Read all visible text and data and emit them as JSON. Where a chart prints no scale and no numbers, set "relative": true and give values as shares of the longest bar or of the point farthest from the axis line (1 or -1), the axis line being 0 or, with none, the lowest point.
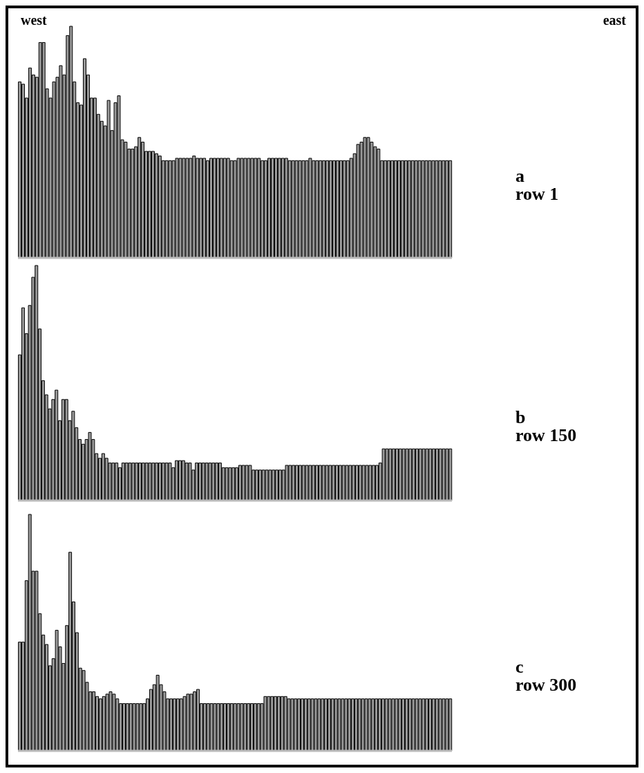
{
  "chart_data": [
    {
      "type": "bar",
      "relative": true,
      "annotations": [
        "west",
        "east",
        "a",
        "row 1"
      ],
      "color": "#9a9a9a",
      "categories": [
        null,
        null,
        null,
        null,
        null,
        null,
        null,
        null,
        null,
        null,
        null,
        null,
        null,
        null,
        null,
        null,
        null,
        null,
        null,
        null,
        null,
        null,
        null,
        null,
        null,
        null,
        null,
        null,
        null,
        null,
        null,
        null,
        null,
        null,
        null,
        null,
        null,
        null,
        null,
        null,
        null,
        null,
        null,
        null,
        null,
        null,
        null,
        null,
        null,
        null,
        null,
        null,
        null,
        null,
        null,
        null,
        null,
        null,
        null,
        null,
        null,
        null,
        null,
        null,
        null,
        null,
        null,
        null,
        null,
        null,
        null,
        null,
        null,
        null,
        null,
        null,
        null,
        null,
        null,
        null,
        null,
        null,
        null,
        null,
        null,
        null,
        null,
        null,
        null,
        null,
        null,
        null,
        null,
        null,
        null,
        null,
        null,
        null,
        null,
        null,
        null,
        null,
        null,
        null,
        null,
        null,
        null,
        null,
        null,
        null,
        null,
        null,
        null,
        null,
        null,
        null,
        null,
        null,
        null,
        null,
        null,
        null,
        null,
        null,
        null,
        null,
        null
      ],
      "values": [
        0.76,
        0.75,
        0.69,
        0.82,
        0.79,
        0.78,
        0.93,
        0.93,
        0.73,
        0.69,
        0.76,
        0.78,
        0.83,
        0.79,
        0.96,
        1.0,
        0.76,
        0.67,
        0.66,
        0.86,
        0.79,
        0.69,
        0.69,
        0.62,
        0.59,
        0.57,
        0.68,
        0.55,
        0.67,
        0.7,
        0.51,
        0.5,
        0.47,
        0.47,
        0.48,
        0.52,
        0.5,
        0.46,
        0.46,
        0.46,
        0.45,
        0.44,
        0.42,
        0.42,
        0.42,
        0.42,
        0.43,
        0.43,
        0.43,
        0.43,
        0.43,
        0.44,
        0.43,
        0.43,
        0.43,
        0.42,
        0.43,
        0.43,
        0.43,
        0.43,
        0.43,
        0.43,
        0.42,
        0.42,
        0.43,
        0.43,
        0.43,
        0.43,
        0.43,
        0.43,
        0.43,
        0.42,
        0.42,
        0.43,
        0.43,
        0.43,
        0.43,
        0.43,
        0.43,
        0.42,
        0.42,
        0.42,
        0.42,
        0.42,
        0.42,
        0.43,
        0.42,
        0.42,
        0.42,
        0.42,
        0.42,
        0.42,
        0.42,
        0.42,
        0.42,
        0.42,
        0.42,
        0.43,
        0.45,
        0.49,
        0.5,
        0.52,
        0.52,
        0.5,
        0.48,
        0.47,
        0.42,
        0.42,
        0.42,
        0.42,
        0.42,
        0.42,
        0.42,
        0.42,
        0.42,
        0.42,
        0.42,
        0.42,
        0.42,
        0.42,
        0.42,
        0.42,
        0.42,
        0.42,
        0.42,
        0.42,
        0.42
      ]
    },
    {
      "type": "bar",
      "relative": true,
      "annotations": [
        "b",
        "row 150"
      ],
      "color": "#9a9a9a",
      "categories": [
        null,
        null,
        null,
        null,
        null,
        null,
        null,
        null,
        null,
        null,
        null,
        null,
        null,
        null,
        null,
        null,
        null,
        null,
        null,
        null,
        null,
        null,
        null,
        null,
        null,
        null,
        null,
        null,
        null,
        null,
        null,
        null,
        null,
        null,
        null,
        null,
        null,
        null,
        null,
        null,
        null,
        null,
        null,
        null,
        null,
        null,
        null,
        null,
        null,
        null,
        null,
        null,
        null,
        null,
        null,
        null,
        null,
        null,
        null,
        null,
        null,
        null,
        null,
        null,
        null,
        null,
        null,
        null,
        null,
        null,
        null,
        null,
        null,
        null,
        null,
        null,
        null,
        null,
        null,
        null,
        null,
        null,
        null,
        null,
        null,
        null,
        null,
        null,
        null,
        null,
        null,
        null,
        null,
        null,
        null,
        null,
        null,
        null,
        null,
        null,
        null,
        null,
        null,
        null,
        null,
        null,
        null,
        null,
        null,
        null,
        null,
        null,
        null,
        null,
        null,
        null,
        null,
        null,
        null,
        null,
        null,
        null,
        null,
        null,
        null,
        null,
        null,
        null,
        null,
        null
      ],
      "values": [
        0.62,
        0.82,
        0.71,
        0.83,
        0.95,
        1.0,
        0.73,
        0.51,
        0.45,
        0.39,
        0.43,
        0.47,
        0.34,
        0.43,
        0.43,
        0.34,
        0.38,
        0.31,
        0.26,
        0.24,
        0.26,
        0.29,
        0.26,
        0.2,
        0.18,
        0.2,
        0.18,
        0.16,
        0.16,
        0.16,
        0.14,
        0.16,
        0.16,
        0.16,
        0.16,
        0.16,
        0.16,
        0.16,
        0.16,
        0.16,
        0.16,
        0.16,
        0.16,
        0.16,
        0.16,
        0.16,
        0.14,
        0.17,
        0.17,
        0.17,
        0.16,
        0.16,
        0.13,
        0.16,
        0.16,
        0.16,
        0.16,
        0.16,
        0.16,
        0.16,
        0.16,
        0.14,
        0.14,
        0.14,
        0.14,
        0.14,
        0.15,
        0.15,
        0.15,
        0.15,
        0.13,
        0.13,
        0.13,
        0.13,
        0.13,
        0.13,
        0.13,
        0.13,
        0.13,
        0.13,
        0.15,
        0.15,
        0.15,
        0.15,
        0.15,
        0.15,
        0.15,
        0.15,
        0.15,
        0.15,
        0.15,
        0.15,
        0.15,
        0.15,
        0.15,
        0.15,
        0.15,
        0.15,
        0.15,
        0.15,
        0.15,
        0.15,
        0.15,
        0.15,
        0.15,
        0.15,
        0.15,
        0.15,
        0.16,
        0.22,
        0.22,
        0.22,
        0.22,
        0.22,
        0.22,
        0.22,
        0.22,
        0.22,
        0.22,
        0.22,
        0.22,
        0.22,
        0.22,
        0.22,
        0.22,
        0.22,
        0.22,
        0.22,
        0.22,
        0.22
      ]
    },
    {
      "type": "bar",
      "relative": true,
      "annotations": [
        "c",
        "row 300"
      ],
      "color": "#9a9a9a",
      "categories": [
        null,
        null,
        null,
        null,
        null,
        null,
        null,
        null,
        null,
        null,
        null,
        null,
        null,
        null,
        null,
        null,
        null,
        null,
        null,
        null,
        null,
        null,
        null,
        null,
        null,
        null,
        null,
        null,
        null,
        null,
        null,
        null,
        null,
        null,
        null,
        null,
        null,
        null,
        null,
        null,
        null,
        null,
        null,
        null,
        null,
        null,
        null,
        null,
        null,
        null,
        null,
        null,
        null,
        null,
        null,
        null,
        null,
        null,
        null,
        null,
        null,
        null,
        null,
        null,
        null,
        null,
        null,
        null,
        null,
        null,
        null,
        null,
        null,
        null,
        null,
        null,
        null,
        null,
        null,
        null,
        null,
        null,
        null,
        null,
        null,
        null,
        null,
        null,
        null,
        null,
        null,
        null,
        null,
        null,
        null,
        null,
        null,
        null,
        null,
        null,
        null,
        null,
        null,
        null,
        null,
        null,
        null,
        null,
        null,
        null,
        null,
        null,
        null,
        null,
        null,
        null,
        null,
        null,
        null,
        null,
        null,
        null,
        null,
        null,
        null,
        null,
        null,
        null,
        null
      ],
      "values": [
        0.46,
        0.46,
        0.72,
        1.0,
        0.76,
        0.76,
        0.58,
        0.49,
        0.45,
        0.36,
        0.39,
        0.51,
        0.44,
        0.37,
        0.53,
        0.84,
        0.63,
        0.5,
        0.35,
        0.34,
        0.29,
        0.25,
        0.25,
        0.23,
        0.22,
        0.23,
        0.24,
        0.25,
        0.24,
        0.22,
        0.2,
        0.2,
        0.2,
        0.2,
        0.2,
        0.2,
        0.2,
        0.2,
        0.22,
        0.26,
        0.28,
        0.32,
        0.28,
        0.25,
        0.22,
        0.22,
        0.22,
        0.22,
        0.22,
        0.23,
        0.24,
        0.24,
        0.25,
        0.26,
        0.2,
        0.2,
        0.2,
        0.2,
        0.2,
        0.2,
        0.2,
        0.2,
        0.2,
        0.2,
        0.2,
        0.2,
        0.2,
        0.2,
        0.2,
        0.2,
        0.2,
        0.2,
        0.2,
        0.23,
        0.23,
        0.23,
        0.23,
        0.23,
        0.23,
        0.23,
        0.22,
        0.22,
        0.22,
        0.22,
        0.22,
        0.22,
        0.22,
        0.22,
        0.22,
        0.22,
        0.22,
        0.22,
        0.22,
        0.22,
        0.22,
        0.22,
        0.22,
        0.22,
        0.22,
        0.22,
        0.22,
        0.22,
        0.22,
        0.22,
        0.22,
        0.22,
        0.22,
        0.22,
        0.22,
        0.22,
        0.22,
        0.22,
        0.22,
        0.22,
        0.22,
        0.22,
        0.22,
        0.22,
        0.22,
        0.22,
        0.22,
        0.22,
        0.22,
        0.22,
        0.22,
        0.22,
        0.22,
        0.22,
        0.22
      ]
    }
  ]
}
